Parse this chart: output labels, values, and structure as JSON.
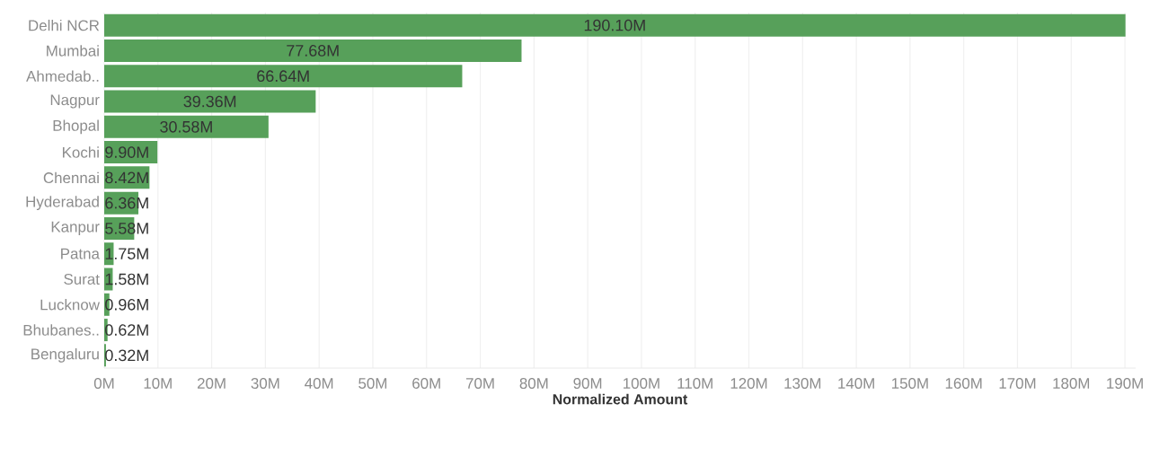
{
  "chart_data": {
    "type": "bar",
    "orientation": "horizontal",
    "xlabel": "Normalized Amount",
    "categories": [
      "Delhi NCR",
      "Mumbai",
      "Ahmedab..",
      "Nagpur",
      "Bhopal",
      "Kochi",
      "Chennai",
      "Hyderabad",
      "Kanpur",
      "Patna",
      "Surat",
      "Lucknow",
      "Bhubanes..",
      "Bengaluru"
    ],
    "values": [
      190.1,
      77.68,
      66.64,
      39.36,
      30.58,
      9.9,
      8.42,
      6.36,
      5.58,
      1.75,
      1.58,
      0.96,
      0.62,
      0.32
    ],
    "value_labels": [
      "190.10M",
      "77.68M",
      "66.64M",
      "39.36M",
      "30.58M",
      "9.90M",
      "8.42M",
      "6.36M",
      "5.58M",
      "1.75M",
      "1.58M",
      "0.96M",
      "0.62M",
      "0.32M"
    ],
    "color": "#57a05a",
    "xlim": [
      0,
      192
    ],
    "xticks": [
      {
        "value": 0,
        "label": "0M"
      },
      {
        "value": 10,
        "label": "10M"
      },
      {
        "value": 20,
        "label": "20M"
      },
      {
        "value": 30,
        "label": "30M"
      },
      {
        "value": 40,
        "label": "40M"
      },
      {
        "value": 50,
        "label": "50M"
      },
      {
        "value": 60,
        "label": "60M"
      },
      {
        "value": 70,
        "label": "70M"
      },
      {
        "value": 80,
        "label": "80M"
      },
      {
        "value": 90,
        "label": "90M"
      },
      {
        "value": 100,
        "label": "100M"
      },
      {
        "value": 110,
        "label": "110M"
      },
      {
        "value": 120,
        "label": "120M"
      },
      {
        "value": 130,
        "label": "130M"
      },
      {
        "value": 140,
        "label": "140M"
      },
      {
        "value": 150,
        "label": "150M"
      },
      {
        "value": 160,
        "label": "160M"
      },
      {
        "value": 170,
        "label": "170M"
      },
      {
        "value": 180,
        "label": "180M"
      },
      {
        "value": 190,
        "label": "190M"
      }
    ],
    "grid": "x"
  }
}
